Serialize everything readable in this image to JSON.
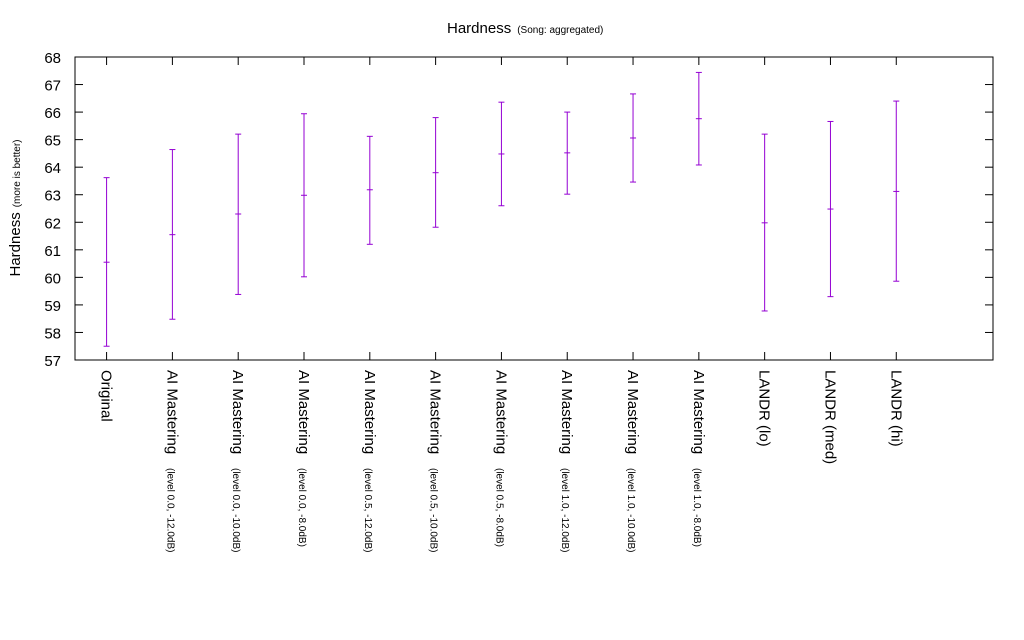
{
  "chart_data": {
    "type": "errorbar",
    "title": "Hardness",
    "title_note": "(Song: aggregated)",
    "ylabel": "Hardness",
    "ylabel_note": "(more is better)",
    "xlabel": "",
    "ylim": [
      57,
      68
    ],
    "yticks": [
      "57",
      "58",
      "59",
      "60",
      "61",
      "62",
      "63",
      "64",
      "65",
      "66",
      "67",
      "68"
    ],
    "grid": false,
    "series_color": "#9400d3",
    "categories": [
      {
        "name": "Original",
        "note": ""
      },
      {
        "name": "AI Mastering",
        "note": "(level 0.0, -12.0dB)"
      },
      {
        "name": "AI Mastering",
        "note": "(level 0.0, -10.0dB)"
      },
      {
        "name": "AI Mastering",
        "note": "(level 0.0, -8.0dB)"
      },
      {
        "name": "AI Mastering",
        "note": "(level 0.5, -12.0dB)"
      },
      {
        "name": "AI Mastering",
        "note": "(level 0.5, -10.0dB)"
      },
      {
        "name": "AI Mastering",
        "note": "(level 0.5, -8.0dB)"
      },
      {
        "name": "AI Mastering",
        "note": "(level 1.0, -12.0dB)"
      },
      {
        "name": "AI Mastering",
        "note": "(level 1.0, -10.0dB)"
      },
      {
        "name": "AI Mastering",
        "note": "(level 1.0, -8.0dB)"
      },
      {
        "name": "LANDR (lo)",
        "note": ""
      },
      {
        "name": "LANDR (med)",
        "note": ""
      },
      {
        "name": "LANDR (hi)",
        "note": ""
      }
    ],
    "mean": [
      60.55,
      61.55,
      62.3,
      62.98,
      63.18,
      63.8,
      64.48,
      64.52,
      65.06,
      65.76,
      61.98,
      62.48,
      63.12
    ],
    "lower": [
      57.5,
      58.48,
      59.38,
      60.02,
      61.2,
      61.82,
      62.6,
      63.02,
      63.46,
      64.08,
      58.78,
      59.3,
      59.86
    ],
    "upper": [
      63.62,
      64.64,
      65.2,
      65.94,
      65.12,
      65.8,
      66.36,
      66.0,
      66.66,
      67.44,
      65.2,
      65.66,
      66.4
    ]
  }
}
